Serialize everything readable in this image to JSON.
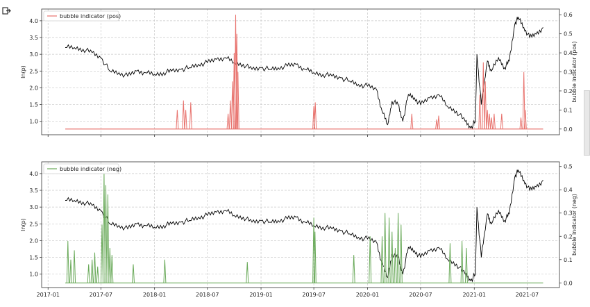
{
  "chart_data": [
    {
      "type": "line",
      "y_axis_left": {
        "label": "ln(p)",
        "lim": [
          0.6,
          4.35
        ],
        "ticks": [
          "1.0",
          "1.5",
          "2.0",
          "2.5",
          "3.0",
          "3.5",
          "4.0"
        ]
      },
      "y_axis_right": {
        "label": "bubble indicator (pos)",
        "lim": [
          -0.03,
          0.63
        ],
        "ticks": [
          "0.0",
          "0.1",
          "0.2",
          "0.3",
          "0.4",
          "0.5",
          "0.6"
        ]
      },
      "x_ticks": [],
      "grid": true,
      "legend": {
        "position": "top-left",
        "entries": [
          {
            "name": "bubble indicator (pos)",
            "color": "#e8736e"
          }
        ]
      },
      "series": [
        {
          "axis": "left",
          "color": "#000000",
          "x": [
            "2017-03-01",
            "2017-04-01",
            "2017-05-01",
            "2017-06-01",
            "2017-07-01",
            "2017-08-01",
            "2017-09-01",
            "2017-10-01",
            "2017-11-01",
            "2017-12-01",
            "2018-01-01",
            "2018-02-01",
            "2018-03-01",
            "2018-04-01",
            "2018-05-01",
            "2018-06-01",
            "2018-07-01",
            "2018-08-01",
            "2018-09-01",
            "2018-10-01",
            "2018-11-01",
            "2018-12-01",
            "2019-01-01",
            "2019-02-01",
            "2019-03-01",
            "2019-04-01",
            "2019-05-01",
            "2019-06-01",
            "2019-07-01",
            "2019-08-01",
            "2019-09-01",
            "2019-10-01",
            "2019-11-01",
            "2019-12-01",
            "2020-01-01",
            "2020-02-01",
            "2020-02-20",
            "2020-03-10",
            "2020-03-25",
            "2020-04-15",
            "2020-05-01",
            "2020-05-20",
            "2020-06-10",
            "2020-07-01",
            "2020-08-01",
            "2020-09-01",
            "2020-10-01",
            "2020-11-01",
            "2020-12-01",
            "2020-12-20",
            "2021-01-05",
            "2021-01-10",
            "2021-01-25",
            "2021-02-15",
            "2021-03-01",
            "2021-03-25",
            "2021-04-15",
            "2021-05-01",
            "2021-05-20",
            "2021-06-01",
            "2021-06-20",
            "2021-07-10",
            "2021-08-01",
            "2021-08-25"
          ],
          "y": [
            3.2,
            3.2,
            3.15,
            3.05,
            2.9,
            2.5,
            2.45,
            2.35,
            2.5,
            2.45,
            2.4,
            2.45,
            2.5,
            2.55,
            2.6,
            2.7,
            2.75,
            2.85,
            2.9,
            2.75,
            2.7,
            2.55,
            2.6,
            2.55,
            2.6,
            2.65,
            2.7,
            2.55,
            2.45,
            2.4,
            2.35,
            2.3,
            2.2,
            2.1,
            2.05,
            1.95,
            1.3,
            0.9,
            1.6,
            1.5,
            1.0,
            1.8,
            1.7,
            1.5,
            1.7,
            1.8,
            1.45,
            1.3,
            1.0,
            0.8,
            1.0,
            3.0,
            1.5,
            2.8,
            2.5,
            2.9,
            2.6,
            2.8,
            3.9,
            4.1,
            3.8,
            3.5,
            3.6,
            3.8
          ]
        },
        {
          "axis": "right",
          "color": "#e8736e",
          "baseline": 0.0,
          "spikes": [
            [
              "2018-03-20",
              0.1
            ],
            [
              "2018-04-10",
              0.15
            ],
            [
              "2018-04-18",
              0.1
            ],
            [
              "2018-05-05",
              0.14
            ],
            [
              "2018-09-10",
              0.08
            ],
            [
              "2018-09-18",
              0.15
            ],
            [
              "2018-09-25",
              0.25
            ],
            [
              "2018-10-01",
              0.4
            ],
            [
              "2018-10-06",
              0.6
            ],
            [
              "2018-10-10",
              0.5
            ],
            [
              "2018-10-14",
              0.3
            ],
            [
              "2019-07-01",
              0.12
            ],
            [
              "2019-07-06",
              0.14
            ],
            [
              "2020-06-01",
              0.08
            ],
            [
              "2020-08-25",
              0.05
            ],
            [
              "2020-09-01",
              0.07
            ],
            [
              "2021-01-20",
              0.18
            ],
            [
              "2021-02-01",
              0.35
            ],
            [
              "2021-02-08",
              0.25
            ],
            [
              "2021-02-15",
              0.1
            ],
            [
              "2021-02-22",
              0.08
            ],
            [
              "2021-03-01",
              0.06
            ],
            [
              "2021-03-10",
              0.08
            ],
            [
              "2021-04-05",
              0.08
            ],
            [
              "2021-06-10",
              0.06
            ],
            [
              "2021-06-20",
              0.3
            ],
            [
              "2021-06-25",
              0.1
            ]
          ]
        }
      ]
    },
    {
      "type": "line",
      "y_axis_left": {
        "label": "ln(p)",
        "lim": [
          0.6,
          4.35
        ],
        "ticks": [
          "1.0",
          "1.5",
          "2.0",
          "2.5",
          "3.0",
          "3.5",
          "4.0"
        ]
      },
      "y_axis_right": {
        "label": "bubble indicator (neg)",
        "lim": [
          -0.02,
          0.52
        ],
        "ticks": [
          "0.0",
          "0.1",
          "0.2",
          "0.3",
          "0.4",
          "0.5"
        ]
      },
      "x_ticks": [
        "2017-01",
        "2017-07",
        "2018-01",
        "2018-07",
        "2019-01",
        "2019-07",
        "2020-01",
        "2020-07",
        "2021-01",
        "2021-07"
      ],
      "grid": true,
      "legend": {
        "position": "top-left",
        "entries": [
          {
            "name": "bubble indicator (neg)",
            "color": "#6aaa5a"
          }
        ]
      },
      "series": [
        {
          "axis": "left",
          "color": "#000000",
          "same_as": 0
        },
        {
          "axis": "right",
          "color": "#6aaa5a",
          "baseline": 0.0,
          "spikes": [
            [
              "2017-03-10",
              0.18
            ],
            [
              "2017-03-20",
              0.1
            ],
            [
              "2017-04-01",
              0.14
            ],
            [
              "2017-05-20",
              0.08
            ],
            [
              "2017-06-01",
              0.1
            ],
            [
              "2017-06-10",
              0.13
            ],
            [
              "2017-06-20",
              0.07
            ],
            [
              "2017-07-05",
              0.25
            ],
            [
              "2017-07-12",
              0.48
            ],
            [
              "2017-07-18",
              0.42
            ],
            [
              "2017-07-25",
              0.38
            ],
            [
              "2017-08-01",
              0.15
            ],
            [
              "2017-08-08",
              0.12
            ],
            [
              "2017-10-20",
              0.08
            ],
            [
              "2018-02-05",
              0.1
            ],
            [
              "2018-11-15",
              0.09
            ],
            [
              "2019-07-01",
              0.28
            ],
            [
              "2019-07-05",
              0.22
            ],
            [
              "2019-11-15",
              0.12
            ],
            [
              "2020-01-10",
              0.2
            ],
            [
              "2020-02-20",
              0.2
            ],
            [
              "2020-03-01",
              0.3
            ],
            [
              "2020-03-15",
              0.28
            ],
            [
              "2020-03-25",
              0.22
            ],
            [
              "2020-04-05",
              0.15
            ],
            [
              "2020-04-15",
              0.3
            ],
            [
              "2020-04-25",
              0.25
            ],
            [
              "2020-10-10",
              0.17
            ],
            [
              "2020-11-20",
              0.18
            ],
            [
              "2020-12-05",
              0.15
            ]
          ]
        }
      ]
    }
  ]
}
